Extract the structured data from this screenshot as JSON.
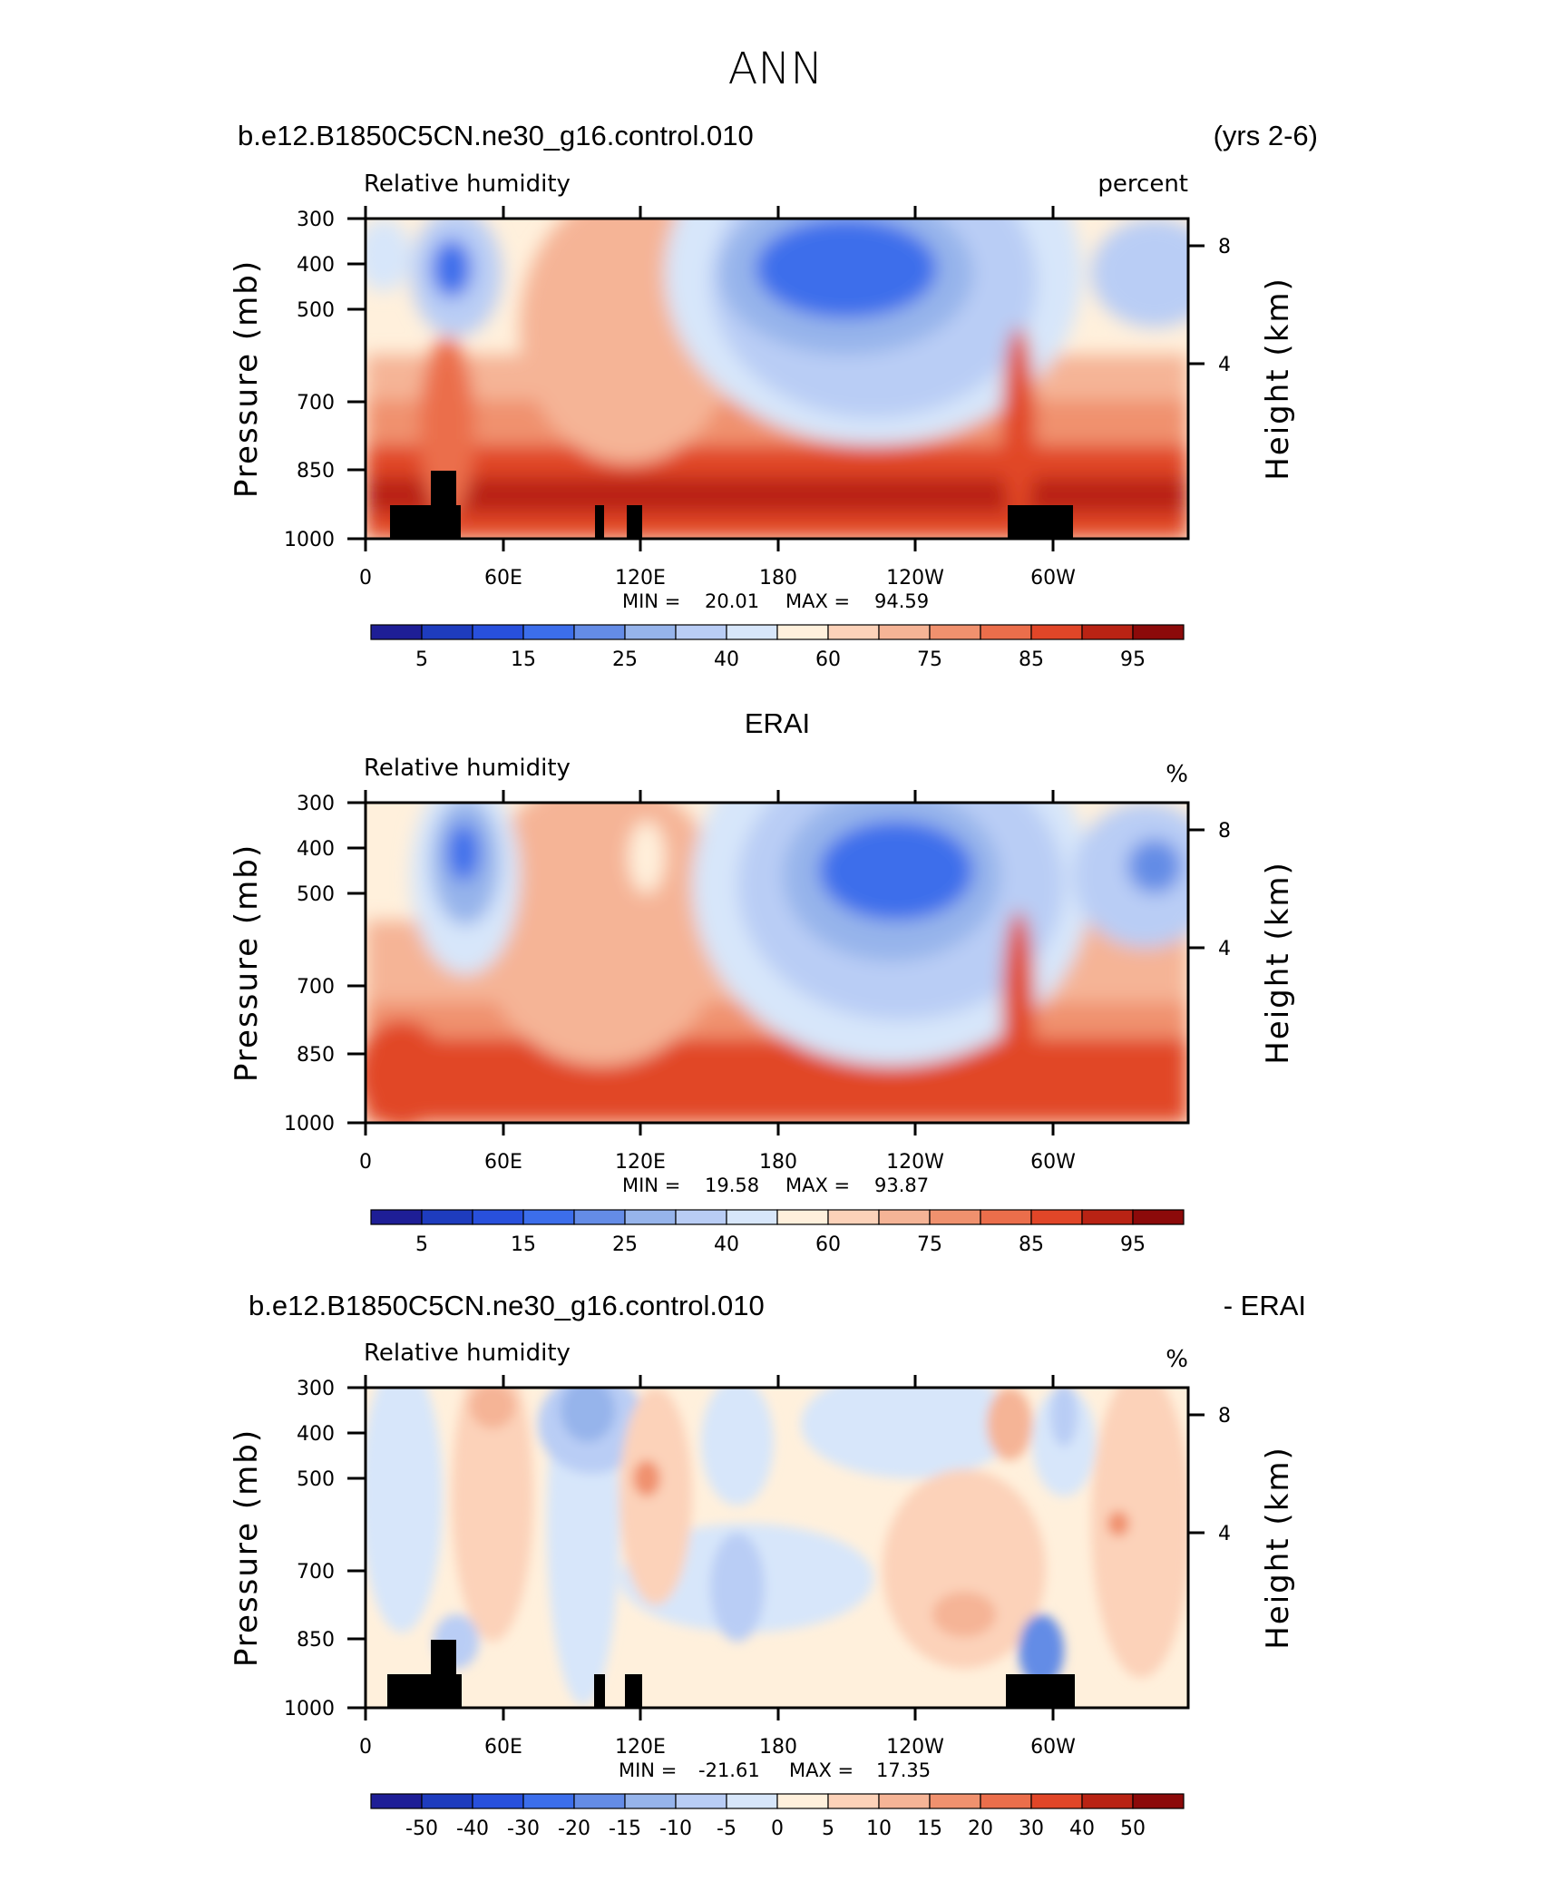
{
  "page_title": "ANN",
  "colorbar_colors": [
    "#1e1e96",
    "#1e3cbe",
    "#2850dc",
    "#3c6eeb",
    "#648ce6",
    "#96b4eb",
    "#b9cdf5",
    "#d7e6fa",
    "#fff0dc",
    "#fcd2b9",
    "#f5b496",
    "#f0916e",
    "#eb6e4b",
    "#e14628",
    "#b92314",
    "#8c0a0a"
  ],
  "panels": [
    {
      "id": "model",
      "left_title": "b.e12.B1850C5CN.ne30_g16.control.010",
      "right_title": "(yrs 2-6)",
      "center_title": "",
      "variable": "Relative humidity",
      "units": "percent",
      "stats": {
        "min_label": "MIN =",
        "min_value": "20.01",
        "max_label": "MAX =",
        "max_value": "94.59"
      },
      "colorbar_labels": [
        "5",
        "15",
        "25",
        "40",
        "60",
        "75",
        "85",
        "95"
      ],
      "masked": true
    },
    {
      "id": "obs",
      "left_title": "",
      "right_title": "",
      "center_title": "ERAI",
      "variable": "Relative humidity",
      "units": "%",
      "stats": {
        "min_label": "MIN =",
        "min_value": "19.58",
        "max_label": "MAX =",
        "max_value": "93.87"
      },
      "colorbar_labels": [
        "5",
        "15",
        "25",
        "40",
        "60",
        "75",
        "85",
        "95"
      ],
      "masked": false
    },
    {
      "id": "diff",
      "left_title": "b.e12.B1850C5CN.ne30_g16.control.010",
      "right_title": "- ERAI",
      "center_title": "",
      "variable": "Relative humidity",
      "units": "%",
      "stats": {
        "min_label": "MIN =",
        "min_value": "-21.61",
        "max_label": "MAX =",
        "max_value": "17.35"
      },
      "colorbar_labels": [
        "-50",
        "-40",
        "-30",
        "-20",
        "-15",
        "-10",
        "-5",
        "0",
        "5",
        "10",
        "15",
        "20",
        "30",
        "40",
        "50"
      ],
      "masked": true
    }
  ],
  "chart_data": [
    {
      "type": "heatmap",
      "title": "b.e12.B1850C5CN.ne30_g16.control.010 (yrs 2-6)",
      "field": "Relative humidity",
      "units": "percent",
      "x_ticks": [
        "0",
        "60E",
        "120E",
        "180",
        "120W",
        "60W"
      ],
      "y_ticks": [
        "300",
        "400",
        "500",
        "700",
        "850",
        "1000"
      ],
      "ylabel": "Pressure (mb)",
      "right_ylabel": "Height (km)",
      "right_y_ticks": [
        "8",
        "4"
      ],
      "levels": [
        5,
        10,
        15,
        20,
        25,
        30,
        40,
        50,
        60,
        70,
        75,
        80,
        85,
        90,
        95
      ],
      "min": 20.01,
      "max": 94.59
    },
    {
      "type": "heatmap",
      "title": "ERAI",
      "field": "Relative humidity",
      "units": "%",
      "x_ticks": [
        "0",
        "60E",
        "120E",
        "180",
        "120W",
        "60W"
      ],
      "y_ticks": [
        "300",
        "400",
        "500",
        "700",
        "850",
        "1000"
      ],
      "ylabel": "Pressure (mb)",
      "right_ylabel": "Height (km)",
      "right_y_ticks": [
        "8",
        "4"
      ],
      "levels": [
        5,
        10,
        15,
        20,
        25,
        30,
        40,
        50,
        60,
        70,
        75,
        80,
        85,
        90,
        95
      ],
      "min": 19.58,
      "max": 93.87
    },
    {
      "type": "heatmap",
      "title": "b.e12.B1850C5CN.ne30_g16.control.010 - ERAI",
      "field": "Relative humidity",
      "units": "%",
      "x_ticks": [
        "0",
        "60E",
        "120E",
        "180",
        "120W",
        "60W"
      ],
      "y_ticks": [
        "300",
        "400",
        "500",
        "700",
        "850",
        "1000"
      ],
      "ylabel": "Pressure (mb)",
      "right_ylabel": "Height (km)",
      "right_y_ticks": [
        "8",
        "4"
      ],
      "levels": [
        -50,
        -40,
        -30,
        -20,
        -15,
        -10,
        -5,
        0,
        5,
        10,
        15,
        20,
        30,
        40,
        50
      ],
      "min": -21.61,
      "max": 17.35
    }
  ],
  "axis_labels": {
    "left": "Pressure (mb)",
    "right": "Height (km)"
  }
}
